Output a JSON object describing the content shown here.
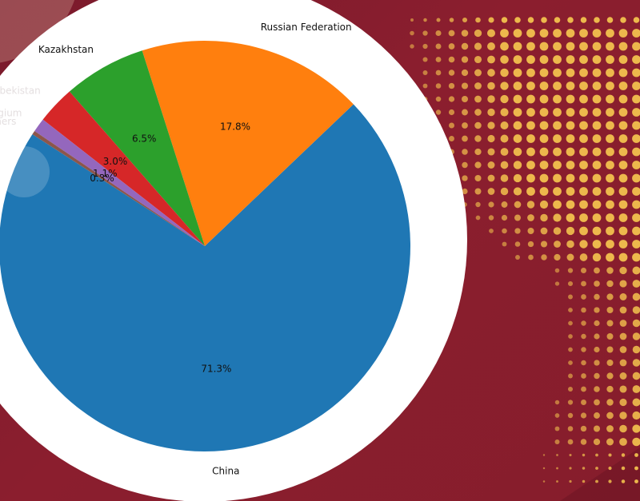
{
  "colors": {
    "background": "#8b1e2e",
    "panel": "#ffffff",
    "dots": "#f2c14e"
  },
  "chart_data": {
    "type": "pie",
    "title": "",
    "start_angle_deg": 147,
    "counterclock": true,
    "slices": [
      {
        "label": "China",
        "value": 71.3,
        "pct_label": "71.3%",
        "color": "#1f77b4"
      },
      {
        "label": "Russian Federation",
        "value": 17.8,
        "pct_label": "17.8%",
        "color": "#ff7f0e"
      },
      {
        "label": "Kazakhstan",
        "value": 6.5,
        "pct_label": "6.5%",
        "color": "#2ca02c"
      },
      {
        "label": "Uzbekistan",
        "value": 3.0,
        "pct_label": "3.0%",
        "color": "#d62728"
      },
      {
        "label": "Belgium",
        "value": 1.1,
        "pct_label": "1.1%",
        "color": "#9467bd"
      },
      {
        "label": "Others",
        "value": 0.3,
        "pct_label": "0.3%",
        "color": "#8c564b"
      }
    ]
  }
}
